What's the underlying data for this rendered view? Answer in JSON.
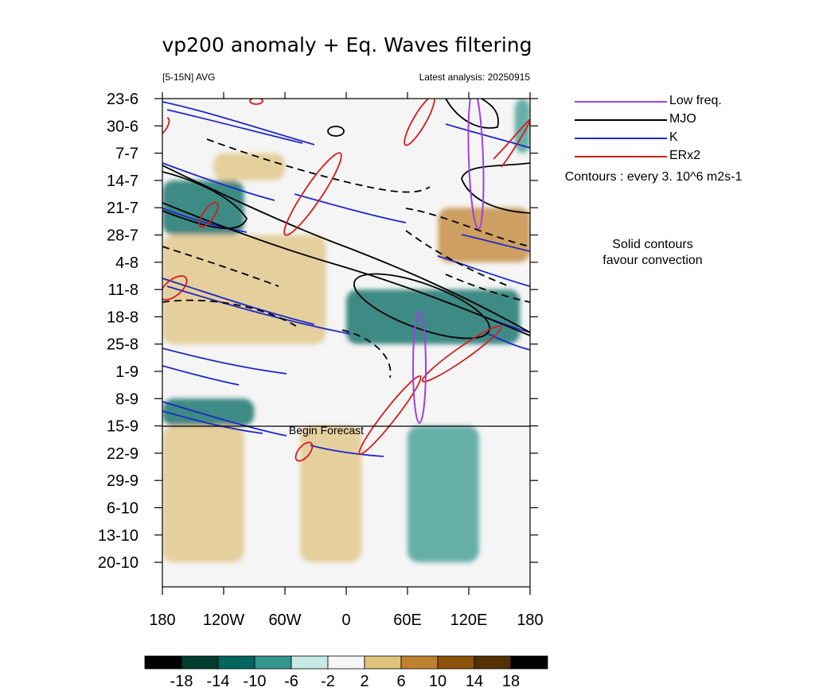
{
  "chart_data": {
    "type": "heatmap",
    "title": "vp200 anomaly + Eq. Waves filtering",
    "subtitle_left": "[5-15N] AVG",
    "subtitle_right": "Latest analysis: 20250915",
    "x_tick_labels": [
      "180",
      "120W",
      "60W",
      "0",
      "60E",
      "120E",
      "180"
    ],
    "x_ticks_deg": [
      -180,
      -120,
      -60,
      0,
      60,
      120,
      180
    ],
    "xlim_deg": [
      -180,
      180
    ],
    "y_tick_labels": [
      "23-6",
      "30-6",
      "7-7",
      "14-7",
      "21-7",
      "28-7",
      "4-8",
      "11-8",
      "18-8",
      "25-8",
      "1-9",
      "8-9",
      "15-9",
      "22-9",
      "29-9",
      "6-10",
      "13-10",
      "20-10"
    ],
    "y_direction": "time increases downward",
    "forecast_start": "15-9",
    "forecast_label": "Begin Forecast",
    "legend": [
      {
        "name": "Low freq.",
        "color": "#a040e0"
      },
      {
        "name": "MJO",
        "color": "#000000"
      },
      {
        "name": "K",
        "color": "#1e28c8"
      },
      {
        "name": "ERx2",
        "color": "#d21e1e"
      }
    ],
    "contour_note": "Contours : every 3. 10^6 m2s-1",
    "convection_note_line1": "Solid contours",
    "convection_note_line2": "favour convection",
    "colorbar_levels": [
      "-18",
      "-14",
      "-10",
      "-6",
      "-2",
      "2",
      "6",
      "10",
      "14",
      "18"
    ],
    "colorbar_colors": [
      "#000000",
      "#003c30",
      "#01665e",
      "#35978f",
      "#c7eae5",
      "#f5f5f5",
      "#dfc27d",
      "#bf812d",
      "#8c510a",
      "#543005",
      "#000000"
    ],
    "shaded_features": [
      {
        "sign": "negative",
        "level": -6,
        "from": "23-6",
        "to": "7-7",
        "lon_start": 165,
        "lon_end": 180
      },
      {
        "sign": "negative",
        "level": -10,
        "from": "11-8",
        "to": "25-8",
        "lon_start": 0,
        "lon_end": 170
      },
      {
        "sign": "negative",
        "level": -10,
        "from": "14-7",
        "to": "28-7",
        "lon_start": -180,
        "lon_end": -100
      },
      {
        "sign": "negative",
        "level": -6,
        "from": "15-9",
        "to": "20-10",
        "lon_start": 60,
        "lon_end": 130
      },
      {
        "sign": "negative",
        "level": -10,
        "from": "8-9",
        "to": "15-9",
        "lon_start": -180,
        "lon_end": -90
      },
      {
        "sign": "positive",
        "level": 10,
        "from": "21-7",
        "to": "4-8",
        "lon_start": 90,
        "lon_end": 180
      },
      {
        "sign": "positive",
        "level": 6,
        "from": "7-7",
        "to": "14-7",
        "lon_start": -130,
        "lon_end": -60
      },
      {
        "sign": "positive",
        "level": 6,
        "from": "28-7",
        "to": "25-8",
        "lon_start": -180,
        "lon_end": -20
      },
      {
        "sign": "positive",
        "level": 6,
        "from": "15-9",
        "to": "20-10",
        "lon_start": -180,
        "lon_end": -100
      },
      {
        "sign": "positive",
        "level": 6,
        "from": "15-9",
        "to": "20-10",
        "lon_start": -45,
        "lon_end": 15
      }
    ]
  }
}
